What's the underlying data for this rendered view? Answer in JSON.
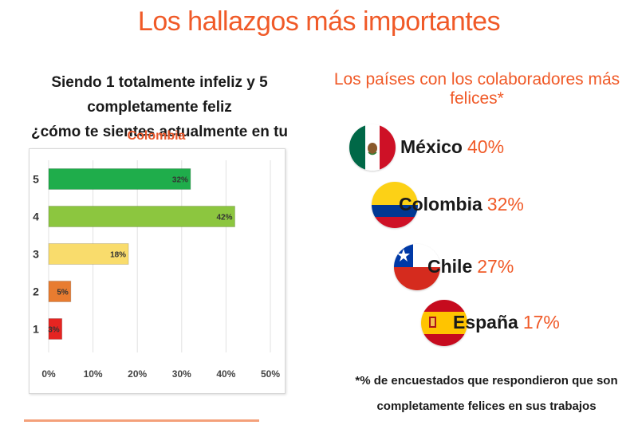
{
  "page": {
    "title": "Los hallazgos más importantes",
    "question_line1": "Siendo 1 totalmente infeliz y 5 completamente feliz",
    "question_line2": "¿cómo te sientes actualmente en tu lugar de trabajo?",
    "countries_title": "Los países con los colaboradores más felices*",
    "footnote_line1": "*% de encuestados que respondieron que son",
    "footnote_line2": "completamente felices en sus trabajos"
  },
  "countries": [
    {
      "name": "México",
      "pct": "40%",
      "flag": "mexico-flag"
    },
    {
      "name": "Colombia",
      "pct": "32%",
      "flag": "colombia-flag"
    },
    {
      "name": "Chile",
      "pct": "27%",
      "flag": "chile-flag"
    },
    {
      "name": "España",
      "pct": "17%",
      "flag": "spain-flag"
    }
  ],
  "colors": {
    "accent": "#f05a28",
    "bar_5": "#1fad4b",
    "bar_4": "#8cc63f",
    "bar_3": "#f9dc6c",
    "bar_2": "#e87c30",
    "bar_1": "#e52421"
  },
  "chart_data": {
    "type": "bar",
    "orientation": "horizontal",
    "title": "Colombia",
    "categories": [
      "5",
      "4",
      "3",
      "2",
      "1"
    ],
    "values": [
      32,
      42,
      18,
      5,
      3
    ],
    "labels": [
      "32%",
      "42%",
      "18%",
      "5%",
      "3%"
    ],
    "bar_colors": [
      "#1fad4b",
      "#8cc63f",
      "#f9dc6c",
      "#e87c30",
      "#e52421"
    ],
    "xlim": [
      0,
      50
    ],
    "xticks": [
      "0%",
      "10%",
      "20%",
      "30%",
      "40%",
      "50%"
    ],
    "grid": true,
    "xlabel": "",
    "ylabel": ""
  }
}
